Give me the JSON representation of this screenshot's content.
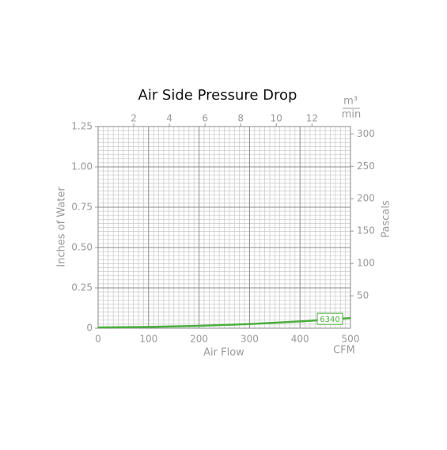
{
  "chart_data": {
    "type": "line",
    "title": "Air Side Pressure Drop",
    "xlabel": "Air Flow",
    "xunit": "CFM",
    "ylabel": "Inches of Water",
    "y2label": "Pascals",
    "x2unit": {
      "numerator": "m³",
      "denominator": "min"
    },
    "x": [
      0,
      100,
      200,
      300,
      400,
      500
    ],
    "series": [
      {
        "name": "6340",
        "color": "#4caf3f",
        "values": [
          0.005,
          0.008,
          0.015,
          0.026,
          0.042,
          0.063
        ]
      }
    ],
    "xlim": [
      0,
      500
    ],
    "xticks": [
      0,
      100,
      200,
      300,
      400,
      500
    ],
    "x2lim": [
      0,
      14.16
    ],
    "x2ticks": [
      2,
      4,
      6,
      8,
      10,
      12
    ],
    "ylim": [
      0,
      1.25
    ],
    "yticks": [
      0,
      {
        "value": 0.25,
        "label": "0.25"
      },
      {
        "value": 0.5,
        "label": "0.50"
      },
      {
        "value": 0.75,
        "label": "0.75"
      },
      {
        "value": 1,
        "label": "1.00"
      },
      1.25
    ],
    "y2lim": [
      0,
      311.4
    ],
    "y2ticks": [
      50,
      100,
      150,
      200,
      250,
      300
    ],
    "grid": true
  }
}
